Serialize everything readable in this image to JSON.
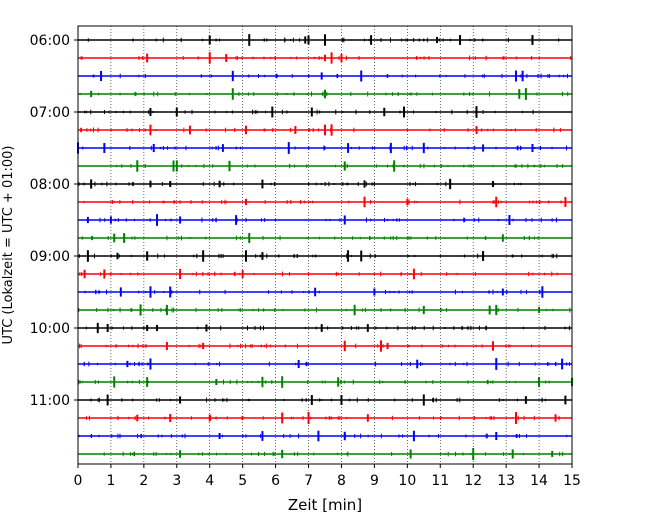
{
  "chart_data": {
    "type": "line",
    "title": "",
    "xlabel": "Zeit  [min]",
    "ylabel": "UTC (Lokalzeit = UTC + 01:00)",
    "xlim": [
      0,
      15
    ],
    "x_ticks": [
      "0",
      "1",
      "2",
      "3",
      "4",
      "5",
      "6",
      "7",
      "8",
      "9",
      "10",
      "11",
      "12",
      "13",
      "14",
      "15"
    ],
    "y_ticks": [
      "06:00",
      "07:00",
      "08:00",
      "09:00",
      "10:00",
      "11:00"
    ],
    "trace_interval_min": 15,
    "trace_colors": [
      "#000000",
      "#ff0000",
      "#0000ff",
      "#008000"
    ],
    "grid": "vertical dotted",
    "rows": [
      {
        "time": "06:00",
        "color": "#000000",
        "events": [
          4.0,
          5.2,
          6.9,
          7.0,
          7.5,
          8.9,
          10.9,
          11.6,
          13.8
        ]
      },
      {
        "time": "06:15",
        "color": "#ff0000",
        "events": [
          2.1,
          4.0,
          4.5,
          7.5,
          7.7,
          8.0
        ]
      },
      {
        "time": "06:30",
        "color": "#0000ff",
        "events": [
          0.7,
          4.7,
          7.4,
          8.6,
          13.3,
          13.5
        ]
      },
      {
        "time": "06:45",
        "color": "#008000",
        "events": [
          0.4,
          4.7,
          7.5,
          13.4,
          13.6
        ]
      },
      {
        "time": "07:00",
        "color": "#000000",
        "events": [
          2.2,
          3.0,
          5.9,
          7.1,
          9.3,
          9.9,
          12.1
        ]
      },
      {
        "time": "07:15",
        "color": "#ff0000",
        "events": [
          2.2,
          3.4,
          5.1,
          6.6,
          7.5,
          7.7,
          12.1
        ]
      },
      {
        "time": "07:30",
        "color": "#0000ff",
        "events": [
          0.0,
          0.8,
          2.3,
          4.4,
          6.4,
          8.2,
          9.5,
          10.5,
          12.3,
          13.8
        ]
      },
      {
        "time": "07:45",
        "color": "#008000",
        "events": [
          1.8,
          2.9,
          3.0,
          4.6,
          8.1,
          9.6
        ]
      },
      {
        "time": "08:00",
        "color": "#000000",
        "events": [
          0.4,
          2.2,
          2.8,
          4.3,
          5.6,
          8.7,
          11.3,
          12.6
        ]
      },
      {
        "time": "08:15",
        "color": "#ff0000",
        "events": [
          5.1,
          8.7,
          10.0,
          12.7,
          14.8
        ]
      },
      {
        "time": "08:30",
        "color": "#0000ff",
        "events": [
          0.3,
          1.0,
          2.4,
          3.1,
          4.8,
          8.1,
          13.1
        ]
      },
      {
        "time": "08:45",
        "color": "#008000",
        "events": [
          1.1,
          1.4,
          5.2,
          12.9
        ]
      },
      {
        "time": "09:00",
        "color": "#000000",
        "events": [
          0.3,
          1.2,
          2.1,
          3.8,
          5.1,
          5.6,
          8.2,
          8.6,
          12.3
        ]
      },
      {
        "time": "09:15",
        "color": "#ff0000",
        "events": [
          0.2,
          0.8,
          3.1,
          5.0,
          10.2
        ]
      },
      {
        "time": "09:30",
        "color": "#0000ff",
        "events": [
          1.3,
          2.2,
          2.8,
          7.2,
          9.0,
          12.9,
          14.1
        ]
      },
      {
        "time": "09:45",
        "color": "#008000",
        "events": [
          1.9,
          2.7,
          8.4,
          10.5,
          12.5,
          12.7,
          14.0
        ]
      },
      {
        "time": "10:00",
        "color": "#000000",
        "events": [
          0.6,
          0.9,
          2.1,
          2.4,
          3.9,
          7.4,
          8.8
        ]
      },
      {
        "time": "10:15",
        "color": "#ff0000",
        "events": [
          2.7,
          3.8,
          8.1,
          9.2,
          9.4,
          12.6
        ]
      },
      {
        "time": "10:30",
        "color": "#0000ff",
        "events": [
          1.5,
          2.2,
          6.7,
          10.3,
          12.7,
          14.7
        ]
      },
      {
        "time": "10:45",
        "color": "#008000",
        "events": [
          1.1,
          2.1,
          4.2,
          5.6,
          6.2,
          7.9,
          14.0,
          15.0
        ]
      },
      {
        "time": "11:00",
        "color": "#000000",
        "events": [
          0.9,
          3.1,
          7.1,
          8.0,
          10.5,
          13.6,
          14.8
        ]
      },
      {
        "time": "11:15",
        "color": "#ff0000",
        "events": [
          1.8,
          2.8,
          4.0,
          6.2,
          7.0,
          8.8,
          13.3,
          14.5
        ]
      },
      {
        "time": "11:30",
        "color": "#0000ff",
        "events": [
          4.3,
          5.6,
          7.3,
          8.1,
          10.2,
          12.7
        ]
      },
      {
        "time": "11:45",
        "color": "#008000",
        "events": [
          3.1,
          6.2,
          10.1,
          12.0,
          13.2,
          14.4
        ]
      }
    ]
  }
}
